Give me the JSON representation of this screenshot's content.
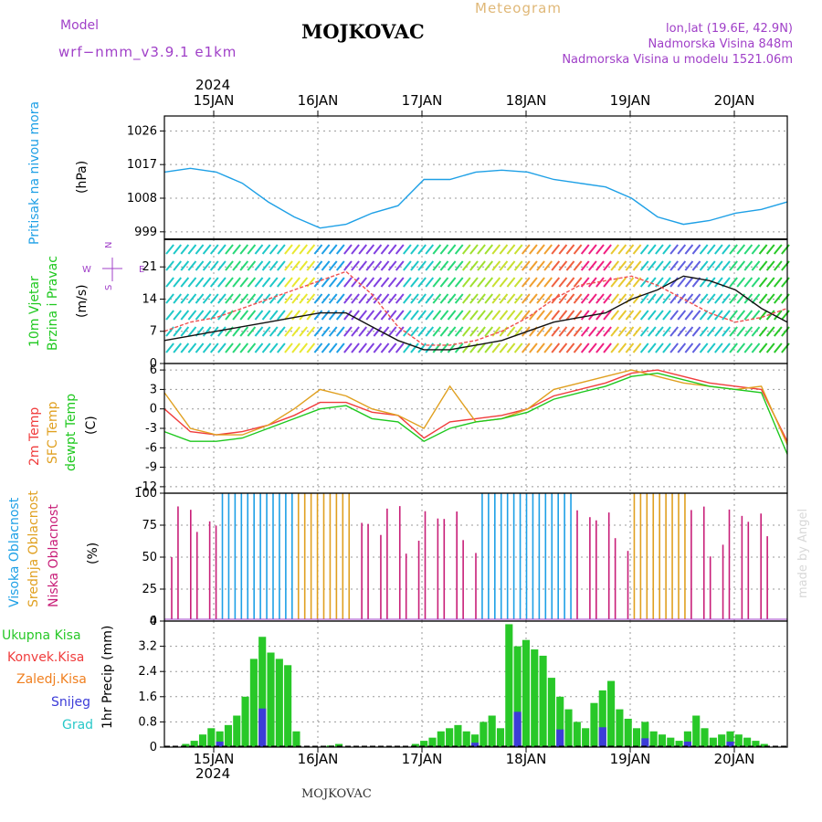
{
  "header": {
    "model_label": "Model",
    "model_name": "wrf−nmm_v3.9.1 e1km",
    "title": "MOJKOVAC",
    "subtitle": "Meteogram",
    "lonlat": "lon,lat (19.6E, 42.9N)",
    "altitude": "Nadmorska Visina 848m",
    "model_altitude": "Nadmorska Visina u modelu 1521.06m",
    "footer": "MOJKOVAC",
    "watermark": "made by Angel",
    "year": "2024"
  },
  "colors": {
    "pressure": "#1ea0e6",
    "wind_label": "#1ec81e",
    "wind_dir_label": "#a040c8",
    "temp": "#f03c3c",
    "sfc": "#e0a020",
    "dew": "#1ec81e",
    "high_cloud": "#1ea0e6",
    "mid_cloud": "#e0a020",
    "low_cloud": "#c81e78",
    "total_precip": "#28c828",
    "conv_precip": "#f03c3c",
    "frz_precip": "#f08020",
    "snow": "#3c3cd8",
    "hail": "#28c8c8"
  },
  "chart_data": [
    {
      "type": "line",
      "ylabel": [
        "Pritisak na nivou mora",
        "(hPa)"
      ],
      "yticks": [
        999,
        1008,
        1017,
        1026
      ],
      "ylim": [
        997,
        1030
      ],
      "xticks": [
        "15JAN",
        "16JAN",
        "17JAN",
        "18JAN",
        "19JAN",
        "20JAN"
      ],
      "grid": true,
      "series": [
        {
          "x_days": [
            0,
            0.25,
            0.5,
            0.75,
            1,
            1.25,
            1.5,
            1.75,
            2,
            2.25,
            2.5,
            2.75,
            3,
            3.25,
            3.5,
            3.75,
            4,
            4.25,
            4.5,
            4.75,
            5,
            5.25,
            5.5,
            5.75,
            6
          ],
          "values": [
            1015,
            1016,
            1015,
            1012,
            1007,
            1003,
            1000,
            1001,
            1004,
            1006,
            1013,
            1013,
            1015,
            1015.5,
            1015,
            1013,
            1012,
            1011,
            1008,
            1003,
            1001,
            1002,
            1004,
            1005,
            1007
          ]
        }
      ]
    },
    {
      "type": "line",
      "ylabel": [
        "10m Vjetar",
        "Brzina i Pravac",
        "(m/s)"
      ],
      "yticks": [
        0,
        7,
        14,
        21
      ],
      "ylim": [
        0,
        27
      ],
      "direction_legend": [
        "W",
        "S",
        "N",
        "E"
      ],
      "grid": true,
      "series": [
        {
          "name": "speed",
          "x_days": [
            0,
            0.25,
            0.5,
            0.75,
            1,
            1.25,
            1.5,
            1.75,
            2,
            2.25,
            2.5,
            2.75,
            3,
            3.25,
            3.5,
            3.75,
            4,
            4.25,
            4.5,
            4.75,
            5,
            5.25,
            5.5,
            5.75,
            6
          ],
          "values": [
            5,
            6,
            7,
            8,
            9,
            10,
            11,
            11,
            8,
            5,
            3,
            3,
            4,
            5,
            7,
            9,
            10,
            11,
            14,
            16,
            19,
            18,
            16,
            12,
            9
          ]
        },
        {
          "name": "gust",
          "x_days": [
            0,
            0.25,
            0.5,
            0.75,
            1,
            1.25,
            1.5,
            1.75,
            2,
            2.25,
            2.5,
            2.75,
            3,
            3.25,
            3.5,
            3.75,
            4,
            4.25,
            4.5,
            4.75,
            5,
            5.25,
            5.5,
            5.75,
            6
          ],
          "values": [
            7,
            9,
            10,
            12,
            14,
            16,
            18,
            20,
            15,
            8,
            4,
            4,
            5,
            7,
            10,
            14,
            17,
            18,
            19,
            17,
            14,
            11,
            9,
            10,
            12
          ]
        }
      ]
    },
    {
      "type": "line",
      "ylabel": [
        "2m Temp",
        "SFC Temp",
        "dewpt Temp",
        "(C)"
      ],
      "yticks": [
        -12,
        -9,
        -6,
        -3,
        0,
        3,
        6
      ],
      "ylim": [
        -13,
        7
      ],
      "grid": true,
      "series": [
        {
          "name": "2m Temp",
          "x_days": [
            0,
            0.25,
            0.5,
            0.75,
            1,
            1.25,
            1.5,
            1.75,
            2,
            2.25,
            2.5,
            2.75,
            3,
            3.25,
            3.5,
            3.75,
            4,
            4.25,
            4.5,
            4.75,
            5,
            5.25,
            5.5,
            5.75,
            6
          ],
          "values": [
            0,
            -3.5,
            -4,
            -3.5,
            -2.5,
            -1,
            1,
            1,
            -0.5,
            -1,
            -4.5,
            -2,
            -1.5,
            -1,
            0,
            2,
            3,
            4,
            5.5,
            6,
            5,
            4,
            3.5,
            3,
            -5
          ]
        },
        {
          "name": "SFC Temp",
          "x_days": [
            0,
            0.25,
            0.5,
            0.75,
            1,
            1.25,
            1.5,
            1.75,
            2,
            2.25,
            2.5,
            2.75,
            3,
            3.25,
            3.5,
            3.75,
            4,
            4.25,
            4.5,
            4.75,
            5,
            5.25,
            5.5,
            5.75,
            6
          ],
          "values": [
            2.5,
            -3,
            -4,
            -4,
            -2.5,
            0,
            3,
            2,
            0,
            -1,
            -3,
            3.5,
            -2,
            -1.5,
            0,
            3,
            4,
            5,
            6,
            5,
            4,
            3.5,
            3,
            3.5,
            -5.5
          ]
        },
        {
          "name": "dewpt Temp",
          "x_days": [
            0,
            0.25,
            0.5,
            0.75,
            1,
            1.25,
            1.5,
            1.75,
            2,
            2.25,
            2.5,
            2.75,
            3,
            3.25,
            3.5,
            3.75,
            4,
            4.25,
            4.5,
            4.75,
            5,
            5.25,
            5.5,
            5.75,
            6
          ],
          "values": [
            -3.5,
            -5,
            -5,
            -4.5,
            -3,
            -1.5,
            0,
            0.5,
            -1.5,
            -2,
            -5,
            -3,
            -2,
            -1.5,
            -0.5,
            1.5,
            2.5,
            3.5,
            5,
            5.5,
            4.5,
            3.5,
            3,
            2.5,
            -7
          ]
        }
      ]
    },
    {
      "type": "bar",
      "ylabel": [
        "Visoka Oblacnost",
        "Srednja Oblacnost",
        "Niska Oblacnost",
        "(%)"
      ],
      "yticks": [
        0,
        25,
        50,
        75,
        100
      ],
      "ylim": [
        0,
        100
      ],
      "grid": true
    },
    {
      "type": "bar",
      "ylabel": [
        "1hr Precip (mm)"
      ],
      "legend": [
        "Ukupna Kisa",
        "Konvek.Kisa",
        "Zaledj.Kisa",
        "Snijeg",
        "Grad"
      ],
      "yticks": [
        0,
        0.8,
        1.6,
        2.4,
        3.2,
        4
      ],
      "ylim": [
        0,
        4
      ],
      "grid": true
    }
  ]
}
